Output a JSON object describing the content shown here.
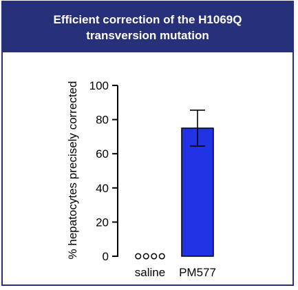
{
  "header": {
    "title": "Efficient correction of the H1069Q transversion mutation"
  },
  "colors": {
    "header_bg": "#26317a",
    "bar_fill": "#2233e6",
    "axis": "#000000"
  },
  "chart_data": {
    "type": "bar",
    "title": "Efficient correction of the H1069Q transversion mutation",
    "xlabel": "",
    "ylabel": "% hepatocytes precisely corrected",
    "ylim": [
      0,
      100
    ],
    "yticks": [
      "0",
      "20",
      "40",
      "60",
      "80",
      "100"
    ],
    "categories": [
      "saline",
      "PM577"
    ],
    "values": [
      0,
      75
    ],
    "error": [
      0,
      10.5
    ],
    "points": {
      "saline": [
        0,
        0,
        0,
        0
      ]
    },
    "grid": false,
    "legend": "none"
  }
}
